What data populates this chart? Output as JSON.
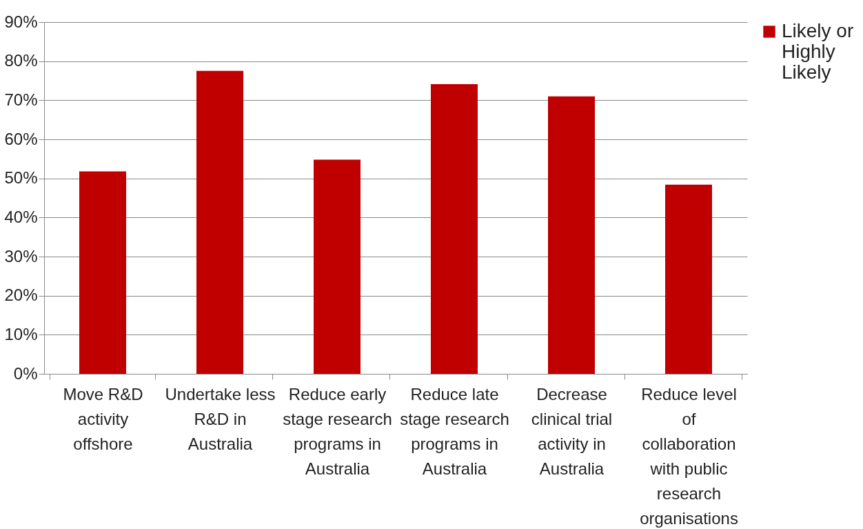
{
  "chart_data": {
    "type": "bar",
    "categories": [
      "Move R&D activity offshore",
      "Undertake less R&D in Australia",
      "Reduce early stage research programs in Australia",
      "Reduce late stage research programs in Australia",
      "Decrease clinical trial activity in Australia",
      "Reduce level of collaboration with public research organisations"
    ],
    "series": [
      {
        "name": "Likely or Highly Likely",
        "color": "#c00000",
        "values": [
          51.8,
          77.5,
          54.8,
          74.1,
          71.0,
          48.4
        ]
      }
    ],
    "ylim": [
      0,
      90
    ],
    "yticks": [
      {
        "value": 0,
        "label": "0%"
      },
      {
        "value": 10,
        "label": "10%"
      },
      {
        "value": 20,
        "label": "20%"
      },
      {
        "value": 30,
        "label": "30%"
      },
      {
        "value": 40,
        "label": "40%"
      },
      {
        "value": 50,
        "label": "50%"
      },
      {
        "value": 60,
        "label": "60%"
      },
      {
        "value": 70,
        "label": "70%"
      },
      {
        "value": 80,
        "label": "80%"
      },
      {
        "value": 90,
        "label": "90%"
      }
    ],
    "grid": "y",
    "legend": "right"
  }
}
